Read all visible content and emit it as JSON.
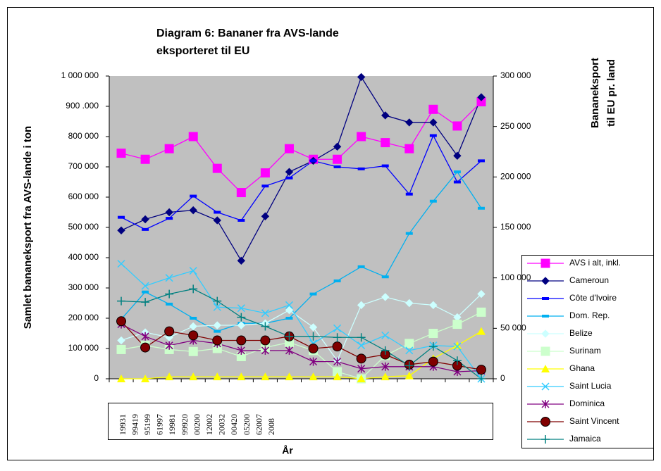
{
  "chart_data": {
    "type": "line",
    "title": [
      "Diagram 6: Bananer fra AVS-lande",
      "eksporteret til EU"
    ],
    "y_label": "Samlet bananeksport fra AVS-lande i ton",
    "y2_label": [
      "Bananeksport",
      "til  EU pr. land"
    ],
    "x_label": "År",
    "categories": [
      "19931",
      "99419",
      "95199",
      "61997",
      "19981",
      "99920",
      "00200",
      "12002",
      "20032",
      "00420",
      "05200",
      "62007",
      "2008",
      null,
      null,
      null
    ],
    "ylim": [
      0,
      1000000
    ],
    "yticks": [
      0,
      {
        "value": 100000,
        "label": "100 000"
      },
      {
        "value": 200000,
        "label": "200 000"
      },
      {
        "value": 300000,
        "label": "300 000"
      },
      {
        "value": 400000,
        "label": "400 000"
      },
      {
        "value": 500000,
        "label": "500 000"
      },
      {
        "value": 600000,
        "label": "600 000"
      },
      {
        "value": 700000,
        "label": "700 000"
      },
      {
        "value": 800000,
        "label": "800 000"
      },
      {
        "value": 900000,
        "label": "900 .000"
      },
      {
        "value": 1000000,
        "label": "1 000 000"
      }
    ],
    "y2lim": [
      0,
      300000
    ],
    "y2ticks": [
      0,
      {
        "value": 50000,
        "label": "50 000"
      },
      {
        "value": 100000,
        "label": "100 000"
      },
      {
        "value": 150000,
        "label": "150 000"
      },
      {
        "value": 200000,
        "label": "200 000"
      },
      {
        "value": 250000,
        "label": "250 000"
      },
      {
        "value": 300000,
        "label": "300 000"
      }
    ],
    "series": [
      {
        "name": "AVS i alt, inkl.",
        "color": "#ff00ff",
        "marker": "square",
        "values": [
          745000,
          725000,
          760000,
          800000,
          695000,
          615000,
          680000,
          760000,
          725000,
          725000,
          800000,
          780000,
          760000,
          890000,
          835000,
          915000
        ]
      },
      {
        "name": "Cameroun",
        "color": "#000080",
        "marker": "diamond",
        "axis": "y2",
        "values": [
          147000,
          158000,
          165000,
          167000,
          157000,
          117000,
          161000,
          205000,
          216000,
          230000,
          299000,
          261000,
          254000,
          254000,
          221000,
          279000
        ]
      },
      {
        "name": "Côte d'Ivoire",
        "color": "#0000ff",
        "marker": "dash",
        "axis": "y2",
        "values": [
          160000,
          148000,
          159000,
          181000,
          165000,
          157000,
          191000,
          199000,
          216000,
          210000,
          208000,
          211000,
          183000,
          241000,
          195000,
          216000
        ]
      },
      {
        "name": "Dom. Rep.",
        "color": "#00b0f0",
        "marker": "dash",
        "axis": "y2",
        "values": [
          59000,
          86000,
          74000,
          60000,
          47000,
          55000,
          55000,
          60000,
          84000,
          97000,
          111000,
          101000,
          144000,
          176000,
          205000,
          169000
        ]
      },
      {
        "name": "Belize",
        "color": "#ccffff",
        "marker": "diamond",
        "axis": "y2",
        "values": [
          38000,
          46000,
          41000,
          52000,
          53000,
          53000,
          55000,
          68000,
          51000,
          18000,
          73000,
          81000,
          75000,
          73000,
          61000,
          84000
        ]
      },
      {
        "name": "Surinam",
        "color": "#ccffcc",
        "marker": "square",
        "axis": "y2",
        "values": [
          29000,
          33000,
          29000,
          27000,
          30000,
          22000,
          31000,
          36000,
          28000,
          7000,
          0,
          23000,
          35000,
          45000,
          54000,
          66000
        ]
      },
      {
        "name": "Ghana",
        "color": "#ffff00",
        "marker": "triangle",
        "axis": "y2",
        "values": [
          0,
          0,
          2000,
          2000,
          2000,
          2000,
          2000,
          2000,
          2000,
          2000,
          0,
          2000,
          3000,
          20000,
          33000,
          47000
        ]
      },
      {
        "name": "Saint Lucia",
        "color": "#33ccff",
        "marker": "x",
        "axis": "y2",
        "values": [
          114000,
          92000,
          100000,
          107000,
          71000,
          70000,
          65000,
          73000,
          35000,
          50000,
          33000,
          43000,
          28000,
          33000,
          32000,
          0
        ]
      },
      {
        "name": "Dominica",
        "color": "#800080",
        "marker": "asterisk",
        "axis": "y2",
        "values": [
          54000,
          42000,
          33000,
          38000,
          35000,
          28000,
          28000,
          28000,
          17000,
          17000,
          10000,
          12000,
          12000,
          12000,
          7000,
          8000
        ]
      },
      {
        "name": "Saint Vincent",
        "color": "#800000",
        "marker": "circle",
        "axis": "y2",
        "values": [
          57000,
          31000,
          47000,
          43000,
          38000,
          38000,
          38000,
          42000,
          30000,
          32000,
          20000,
          24000,
          14000,
          17000,
          13000,
          9000
        ]
      },
      {
        "name": "Jamaica",
        "color": "#008080",
        "marker": "plus",
        "axis": "y2",
        "values": [
          77000,
          76000,
          84000,
          89000,
          77000,
          61000,
          52000,
          42000,
          42000,
          41000,
          41000,
          28000,
          13000,
          32000,
          18000,
          0
        ]
      }
    ]
  }
}
